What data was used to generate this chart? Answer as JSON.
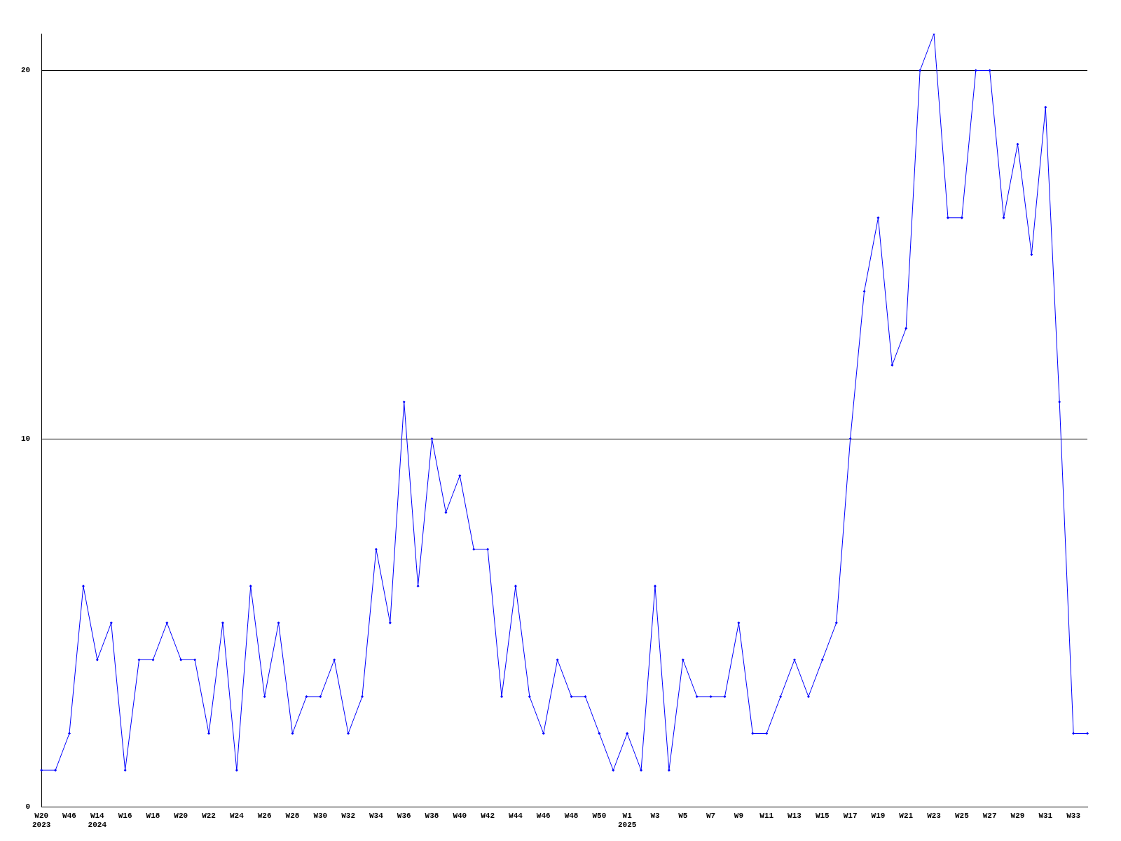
{
  "chart_data": {
    "type": "line",
    "categories": [
      "W20 2023",
      null,
      "W46",
      null,
      "W14 2024",
      null,
      "W16",
      null,
      "W18",
      null,
      "W20",
      null,
      "W22",
      null,
      "W24",
      null,
      "W26",
      null,
      "W28",
      null,
      "W30",
      null,
      "W32",
      null,
      "W34",
      null,
      "W36",
      null,
      "W38",
      null,
      "W40",
      null,
      "W42",
      null,
      "W44",
      null,
      "W46",
      null,
      "W48",
      null,
      "W50",
      null,
      "W1 2025",
      null,
      "W3",
      null,
      "W5",
      null,
      "W7",
      null,
      "W9",
      null,
      "W11",
      null,
      "W13",
      null,
      "W15",
      null,
      "W17",
      null,
      "W19",
      null,
      "W21",
      null,
      "W23",
      null,
      "W25",
      null,
      "W27",
      null,
      "W29",
      null,
      "W31",
      null,
      "W33",
      null
    ],
    "series": [
      {
        "color": "#0000ff",
        "values": [
          1,
          1,
          2,
          6,
          4,
          5,
          1,
          4,
          4,
          5,
          4,
          4,
          2,
          5,
          1,
          6,
          3,
          5,
          2,
          3,
          3,
          4,
          2,
          3,
          7,
          5,
          11,
          6,
          10,
          8,
          9,
          7,
          7,
          3,
          6,
          3,
          2,
          4,
          3,
          3,
          2,
          1,
          2,
          1,
          6,
          1,
          4,
          3,
          3,
          3,
          5,
          2,
          2,
          3,
          4,
          3,
          4,
          5,
          10,
          14,
          16,
          12,
          13,
          20,
          21,
          16,
          16,
          20,
          20,
          16,
          18,
          15,
          19,
          11,
          2,
          2
        ]
      }
    ],
    "ylim": [
      0,
      21
    ],
    "yticks": [
      0,
      10,
      20
    ],
    "grid": "y",
    "legend": false,
    "marker": "diamond",
    "line_style": "solid"
  }
}
